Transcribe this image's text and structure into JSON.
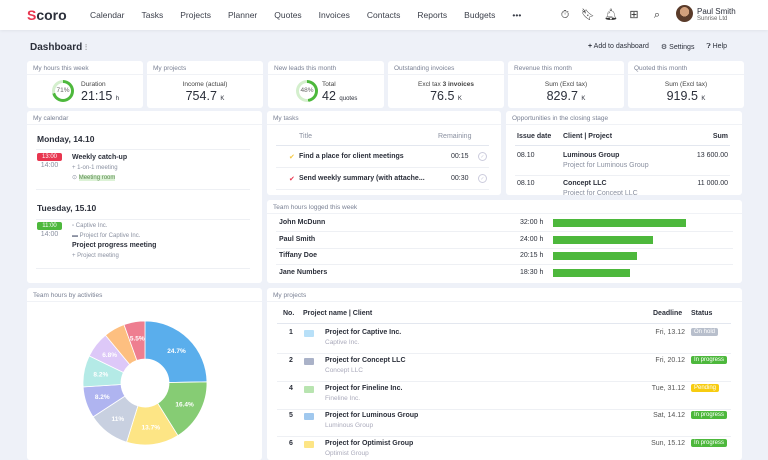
{
  "header": {
    "logo": "Scoro",
    "nav": [
      "Calendar",
      "Tasks",
      "Projects",
      "Planner",
      "Quotes",
      "Invoices",
      "Contacts",
      "Reports",
      "Budgets",
      "•••"
    ],
    "icons": [
      "timer-icon",
      "bookmark-icon",
      "bell-icon",
      "add-icon",
      "search-icon"
    ],
    "user": {
      "name": "Paul Smith",
      "company": "Sunrise Ltd"
    }
  },
  "page": {
    "title": "Dashboard",
    "add": "Add to dashboard",
    "settings": "Settings",
    "help": "Help"
  },
  "kpis": [
    {
      "title": "My hours this week",
      "label": "Duration",
      "value": "21:15",
      "unit": "h",
      "percent": 71,
      "percent_label": "71%"
    },
    {
      "title": "My projects",
      "label": "Income (actual)",
      "value": "754.7",
      "unit": "K"
    },
    {
      "title": "New leads this month",
      "label": "Total",
      "value": "42",
      "unit": "quotes",
      "percent": 48,
      "percent_label": "48%"
    },
    {
      "title": "Outstanding invoices",
      "label": "Excl tax",
      "label_bold": "3 invoices",
      "value": "76.5",
      "unit": "K"
    },
    {
      "title": "Revenue this month",
      "label": "Sum (Excl tax)",
      "value": "829.7",
      "unit": "K"
    },
    {
      "title": "Quoted this month",
      "label": "Sum (Excl tax)",
      "value": "919.5",
      "unit": "K"
    }
  ],
  "calendar": {
    "title": "My calendar",
    "days": [
      {
        "date": "Monday, 14.10",
        "start": "13:00",
        "end": "14:00",
        "event": "Weekly catch-up",
        "type": "1-on-1 meeting",
        "room": "Meeting room",
        "color": "#e8364f"
      },
      {
        "date": "Tuesday, 15.10",
        "start": "11:00",
        "end": "14:00",
        "client": "Captive Inc.",
        "project": "Project for Captive Inc.",
        "event": "Project progress meeting",
        "type": "Project meeting",
        "color": "#4db83c"
      }
    ]
  },
  "tasks": {
    "title": "My tasks",
    "col_title": "Title",
    "col_remaining": "Remaining",
    "rows": [
      {
        "title": "Find a place for client meetings",
        "remaining": "00:15",
        "color": "#f5c842"
      },
      {
        "title": "Send weekly summary (with attache...",
        "remaining": "00:30",
        "color": "#e8364f"
      }
    ]
  },
  "opportunities": {
    "title": "Opportunities in the closing stage",
    "cols": [
      "Issue date",
      "Client | Project",
      "Sum"
    ],
    "rows": [
      {
        "date": "08.10",
        "client": "Luminous Group",
        "project": "Project for Luminous Group",
        "sum": "13 600.00"
      },
      {
        "date": "08.10",
        "client": "Concept LLC",
        "project": "Project for Concept LLC",
        "sum": "11 000.00"
      }
    ]
  },
  "team_hours": {
    "title": "Team hours logged this week",
    "rows": [
      {
        "name": "John McDunn",
        "hours": "32:00 h",
        "value": 32
      },
      {
        "name": "Paul Smith",
        "hours": "24:00 h",
        "value": 24
      },
      {
        "name": "Tiffany Doe",
        "hours": "20:15 h",
        "value": 20.25
      },
      {
        "name": "Jane Numbers",
        "hours": "18:30 h",
        "value": 18.5
      }
    ]
  },
  "chart_data": {
    "type": "pie",
    "title": "Team hours by activities",
    "donut": true,
    "values": [
      24.7,
      16.4,
      13.7,
      11,
      8.2,
      8.2,
      6.8,
      5.5,
      5.5
    ],
    "labels": [
      "24.7%",
      "16.4%",
      "13.7%",
      "11%",
      "8.2%",
      "8.2%",
      "6.8%",
      "",
      "5.5%"
    ],
    "colors": [
      "#5aaeec",
      "#86cc74",
      "#fde585",
      "#c8d0e0",
      "#afb4f0",
      "#b4eae6",
      "#ddc8f8",
      "#fdbf80",
      "#ee7e90"
    ]
  },
  "projects": {
    "title": "My projects",
    "cols": [
      "No.",
      "Project name | Client",
      "Deadline",
      "Status"
    ],
    "rows": [
      {
        "no": "1",
        "name": "Project for Captive Inc.",
        "client": "Captive Inc.",
        "deadline": "Fri, 13.12",
        "status": "On hold",
        "status_color": "#b8bfcc",
        "color": "#b8e0f8"
      },
      {
        "no": "2",
        "name": "Project for Concept LLC",
        "client": "Concept LLC",
        "deadline": "Fri, 20.12",
        "status": "In progress",
        "status_color": "#4db83c",
        "color": "#aab2c8"
      },
      {
        "no": "4",
        "name": "Project for Fineline Inc.",
        "client": "Fineline Inc.",
        "deadline": "Tue, 31.12",
        "status": "Pending",
        "status_color": "#f7cc10",
        "color": "#b8e4b0"
      },
      {
        "no": "5",
        "name": "Project for Luminous Group",
        "client": "Luminous Group",
        "deadline": "Sat, 14.12",
        "status": "In progress",
        "status_color": "#4db83c",
        "color": "#a0c8ee"
      },
      {
        "no": "6",
        "name": "Project for Optimist Group",
        "client": "Optimist Group",
        "deadline": "Sun, 15.12",
        "status": "In progress",
        "status_color": "#4db83c",
        "color": "#fde585"
      }
    ]
  }
}
